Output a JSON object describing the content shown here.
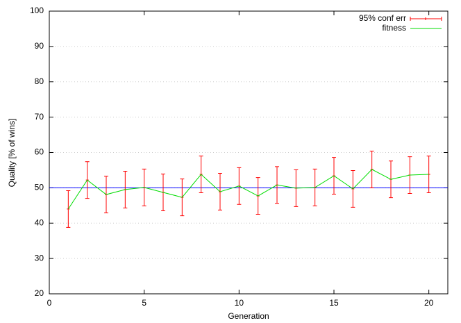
{
  "chart_data": {
    "type": "errorbar-line",
    "xlabel": "Generation",
    "ylabel": "Quality [% of wins]",
    "x": [
      1,
      2,
      3,
      4,
      5,
      6,
      7,
      8,
      9,
      10,
      11,
      12,
      13,
      14,
      15,
      16,
      17,
      18,
      19,
      20
    ],
    "series": [
      {
        "name": "95% conf err",
        "color": "#ff0000",
        "values": [
          44.0,
          52.2,
          48.1,
          49.5,
          50.1,
          48.7,
          47.3,
          53.8,
          48.9,
          50.5,
          47.7,
          50.8,
          49.9,
          50.1,
          53.4,
          49.7,
          55.2,
          52.4,
          53.6,
          53.8
        ],
        "errors": [
          5.2,
          5.2,
          5.2,
          5.2,
          5.2,
          5.2,
          5.2,
          5.2,
          5.2,
          5.2,
          5.2,
          5.2,
          5.2,
          5.2,
          5.2,
          5.2,
          5.2,
          5.2,
          5.2,
          5.2
        ]
      },
      {
        "name": "fitness",
        "color": "#00dd00",
        "values": [
          44.0,
          52.2,
          48.1,
          49.5,
          50.1,
          48.7,
          47.3,
          53.8,
          48.9,
          50.5,
          47.7,
          50.8,
          49.9,
          50.1,
          53.4,
          49.7,
          55.2,
          52.4,
          53.6,
          53.8
        ]
      }
    ],
    "reference_line": {
      "value": 50,
      "color": "#0000ff"
    },
    "xlim": [
      0,
      21
    ],
    "xticks": [
      0,
      5,
      10,
      15,
      20
    ],
    "ylim": [
      20,
      100
    ],
    "yticks": [
      20,
      30,
      40,
      50,
      60,
      70,
      80,
      90,
      100
    ],
    "grid": true,
    "legend": "top-right"
  }
}
